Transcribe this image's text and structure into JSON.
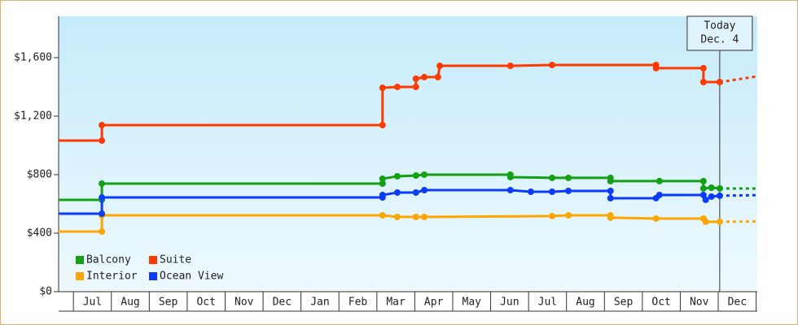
{
  "chart_data": {
    "type": "step-line",
    "xlim": [
      -0.39,
      18.03
    ],
    "xticks": [
      {
        "value": 0.5,
        "label": "Jul"
      },
      {
        "value": 1.5,
        "label": "Aug"
      },
      {
        "value": 2.5,
        "label": "Sep"
      },
      {
        "value": 3.5,
        "label": "Oct"
      },
      {
        "value": 4.5,
        "label": "Nov"
      },
      {
        "value": 5.5,
        "label": "Dec"
      },
      {
        "value": 6.5,
        "label": "Jan"
      },
      {
        "value": 7.5,
        "label": "Feb"
      },
      {
        "value": 8.5,
        "label": "Mar"
      },
      {
        "value": 9.5,
        "label": "Apr"
      },
      {
        "value": 10.5,
        "label": "May"
      },
      {
        "value": 11.5,
        "label": "Jun"
      },
      {
        "value": 12.5,
        "label": "Jul"
      },
      {
        "value": 13.5,
        "label": "Aug"
      },
      {
        "value": 14.5,
        "label": "Sep"
      },
      {
        "value": 15.5,
        "label": "Oct"
      },
      {
        "value": 16.5,
        "label": "Nov"
      },
      {
        "value": 17.5,
        "label": "Dec"
      }
    ],
    "ylim": [
      0,
      1883
    ],
    "yticks": [
      {
        "value": 0,
        "label": "$0"
      },
      {
        "value": 400,
        "label": "$400"
      },
      {
        "value": 800,
        "label": "$800"
      },
      {
        "value": 1200,
        "label": "$1,200"
      },
      {
        "value": 1600,
        "label": "$1,600"
      }
    ],
    "today": {
      "x": 17.04,
      "label": [
        "Today",
        "Dec. 4"
      ]
    },
    "series": [
      {
        "name": "Balcony",
        "color": "#13a013",
        "x": [
          -0.39,
          0.75,
          0.75,
          8.15,
          8.15,
          8.54,
          9.03,
          9.25,
          11.52,
          11.52,
          12.62,
          13.05,
          14.16,
          14.16,
          15.45,
          16.61,
          16.61,
          16.82,
          17.04
        ],
        "values": [
          628,
          628,
          739,
          739,
          772,
          789,
          794,
          800,
          800,
          783,
          778,
          778,
          778,
          756,
          756,
          756,
          706,
          711,
          706
        ],
        "forecast": 705
      },
      {
        "name": "Suite",
        "color": "#ff3a00",
        "x": [
          -0.39,
          0.75,
          0.75,
          8.15,
          8.15,
          8.54,
          9.03,
          9.03,
          9.25,
          9.61,
          9.66,
          11.52,
          12.62,
          15.36,
          15.36,
          16.61,
          16.61,
          17.04
        ],
        "values": [
          1033,
          1033,
          1139,
          1139,
          1394,
          1400,
          1400,
          1456,
          1467,
          1467,
          1544,
          1544,
          1550,
          1550,
          1528,
          1528,
          1433,
          1433
        ],
        "forecast": 1472
      },
      {
        "name": "Interior",
        "color": "#ffa500",
        "x": [
          -0.39,
          0.75,
          0.75,
          8.15,
          8.54,
          9.03,
          9.25,
          12.62,
          13.05,
          14.16,
          14.16,
          15.36,
          16.61,
          16.67,
          17.04
        ],
        "values": [
          411,
          411,
          522,
          522,
          511,
          511,
          511,
          517,
          522,
          522,
          506,
          500,
          500,
          478,
          478
        ],
        "forecast": 480
      },
      {
        "name": "Ocean View",
        "color": "#0a3cff",
        "x": [
          -0.39,
          0.75,
          0.75,
          8.15,
          8.15,
          8.54,
          9.03,
          9.25,
          11.52,
          12.06,
          12.62,
          13.05,
          14.16,
          14.16,
          15.36,
          15.45,
          16.61,
          16.67,
          16.82,
          17.04
        ],
        "values": [
          533,
          533,
          644,
          644,
          661,
          678,
          678,
          694,
          694,
          683,
          683,
          689,
          689,
          639,
          639,
          661,
          661,
          628,
          650,
          656
        ],
        "forecast": 660
      }
    ]
  }
}
